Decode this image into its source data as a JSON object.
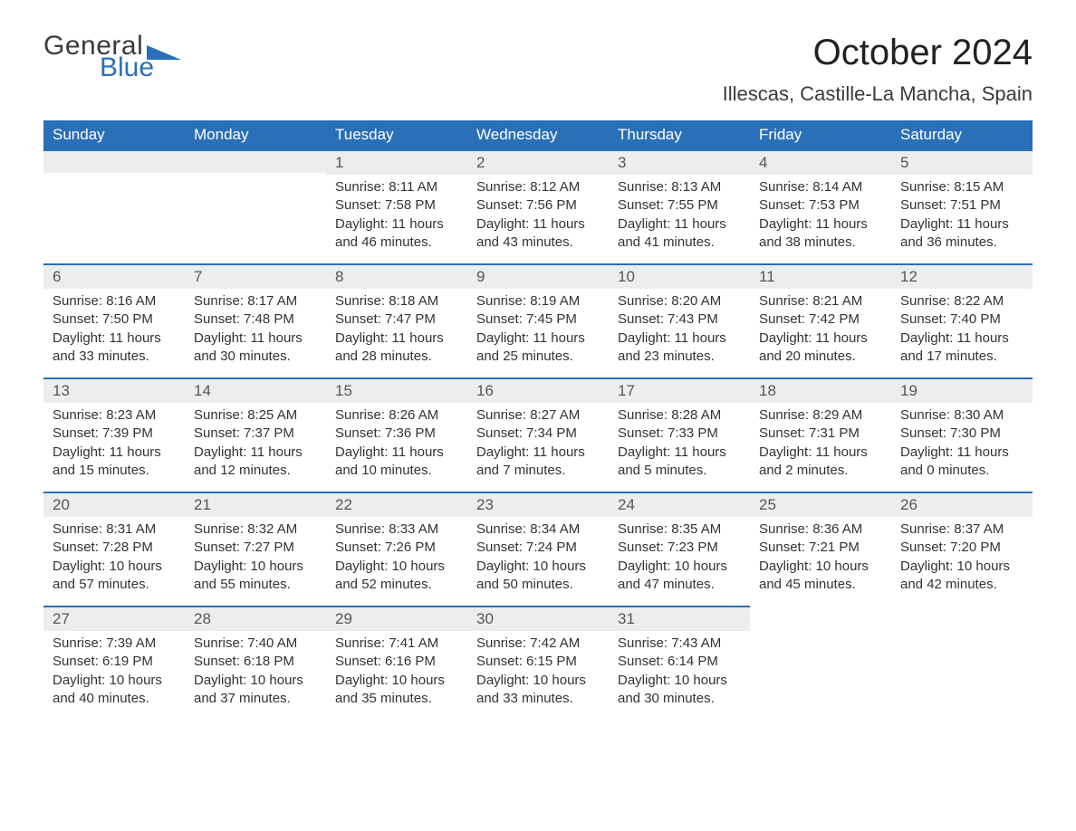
{
  "brand": {
    "word1": "General",
    "word2": "Blue",
    "color_dark": "#3b3b3b",
    "color_blue": "#2a70b8"
  },
  "title": "October 2024",
  "location": "Illescas, Castille-La Mancha, Spain",
  "headers": [
    "Sunday",
    "Monday",
    "Tuesday",
    "Wednesday",
    "Thursday",
    "Friday",
    "Saturday"
  ],
  "colors": {
    "header_bg": "#2a70b8",
    "header_fg": "#ffffff",
    "daybar_bg": "#ededed",
    "daybar_border": "#2a70b8",
    "text": "#333333",
    "page_bg": "#ffffff"
  },
  "type": "table",
  "columns": 7,
  "start_weekday_index": 2,
  "days": [
    {
      "n": 1,
      "sunrise": "8:11 AM",
      "sunset": "7:58 PM",
      "daylight": "11 hours and 46 minutes."
    },
    {
      "n": 2,
      "sunrise": "8:12 AM",
      "sunset": "7:56 PM",
      "daylight": "11 hours and 43 minutes."
    },
    {
      "n": 3,
      "sunrise": "8:13 AM",
      "sunset": "7:55 PM",
      "daylight": "11 hours and 41 minutes."
    },
    {
      "n": 4,
      "sunrise": "8:14 AM",
      "sunset": "7:53 PM",
      "daylight": "11 hours and 38 minutes."
    },
    {
      "n": 5,
      "sunrise": "8:15 AM",
      "sunset": "7:51 PM",
      "daylight": "11 hours and 36 minutes."
    },
    {
      "n": 6,
      "sunrise": "8:16 AM",
      "sunset": "7:50 PM",
      "daylight": "11 hours and 33 minutes."
    },
    {
      "n": 7,
      "sunrise": "8:17 AM",
      "sunset": "7:48 PM",
      "daylight": "11 hours and 30 minutes."
    },
    {
      "n": 8,
      "sunrise": "8:18 AM",
      "sunset": "7:47 PM",
      "daylight": "11 hours and 28 minutes."
    },
    {
      "n": 9,
      "sunrise": "8:19 AM",
      "sunset": "7:45 PM",
      "daylight": "11 hours and 25 minutes."
    },
    {
      "n": 10,
      "sunrise": "8:20 AM",
      "sunset": "7:43 PM",
      "daylight": "11 hours and 23 minutes."
    },
    {
      "n": 11,
      "sunrise": "8:21 AM",
      "sunset": "7:42 PM",
      "daylight": "11 hours and 20 minutes."
    },
    {
      "n": 12,
      "sunrise": "8:22 AM",
      "sunset": "7:40 PM",
      "daylight": "11 hours and 17 minutes."
    },
    {
      "n": 13,
      "sunrise": "8:23 AM",
      "sunset": "7:39 PM",
      "daylight": "11 hours and 15 minutes."
    },
    {
      "n": 14,
      "sunrise": "8:25 AM",
      "sunset": "7:37 PM",
      "daylight": "11 hours and 12 minutes."
    },
    {
      "n": 15,
      "sunrise": "8:26 AM",
      "sunset": "7:36 PM",
      "daylight": "11 hours and 10 minutes."
    },
    {
      "n": 16,
      "sunrise": "8:27 AM",
      "sunset": "7:34 PM",
      "daylight": "11 hours and 7 minutes."
    },
    {
      "n": 17,
      "sunrise": "8:28 AM",
      "sunset": "7:33 PM",
      "daylight": "11 hours and 5 minutes."
    },
    {
      "n": 18,
      "sunrise": "8:29 AM",
      "sunset": "7:31 PM",
      "daylight": "11 hours and 2 minutes."
    },
    {
      "n": 19,
      "sunrise": "8:30 AM",
      "sunset": "7:30 PM",
      "daylight": "11 hours and 0 minutes."
    },
    {
      "n": 20,
      "sunrise": "8:31 AM",
      "sunset": "7:28 PM",
      "daylight": "10 hours and 57 minutes."
    },
    {
      "n": 21,
      "sunrise": "8:32 AM",
      "sunset": "7:27 PM",
      "daylight": "10 hours and 55 minutes."
    },
    {
      "n": 22,
      "sunrise": "8:33 AM",
      "sunset": "7:26 PM",
      "daylight": "10 hours and 52 minutes."
    },
    {
      "n": 23,
      "sunrise": "8:34 AM",
      "sunset": "7:24 PM",
      "daylight": "10 hours and 50 minutes."
    },
    {
      "n": 24,
      "sunrise": "8:35 AM",
      "sunset": "7:23 PM",
      "daylight": "10 hours and 47 minutes."
    },
    {
      "n": 25,
      "sunrise": "8:36 AM",
      "sunset": "7:21 PM",
      "daylight": "10 hours and 45 minutes."
    },
    {
      "n": 26,
      "sunrise": "8:37 AM",
      "sunset": "7:20 PM",
      "daylight": "10 hours and 42 minutes."
    },
    {
      "n": 27,
      "sunrise": "7:39 AM",
      "sunset": "6:19 PM",
      "daylight": "10 hours and 40 minutes."
    },
    {
      "n": 28,
      "sunrise": "7:40 AM",
      "sunset": "6:18 PM",
      "daylight": "10 hours and 37 minutes."
    },
    {
      "n": 29,
      "sunrise": "7:41 AM",
      "sunset": "6:16 PM",
      "daylight": "10 hours and 35 minutes."
    },
    {
      "n": 30,
      "sunrise": "7:42 AM",
      "sunset": "6:15 PM",
      "daylight": "10 hours and 33 minutes."
    },
    {
      "n": 31,
      "sunrise": "7:43 AM",
      "sunset": "6:14 PM",
      "daylight": "10 hours and 30 minutes."
    }
  ],
  "labels": {
    "sunrise": "Sunrise: ",
    "sunset": "Sunset: ",
    "daylight": "Daylight: "
  }
}
